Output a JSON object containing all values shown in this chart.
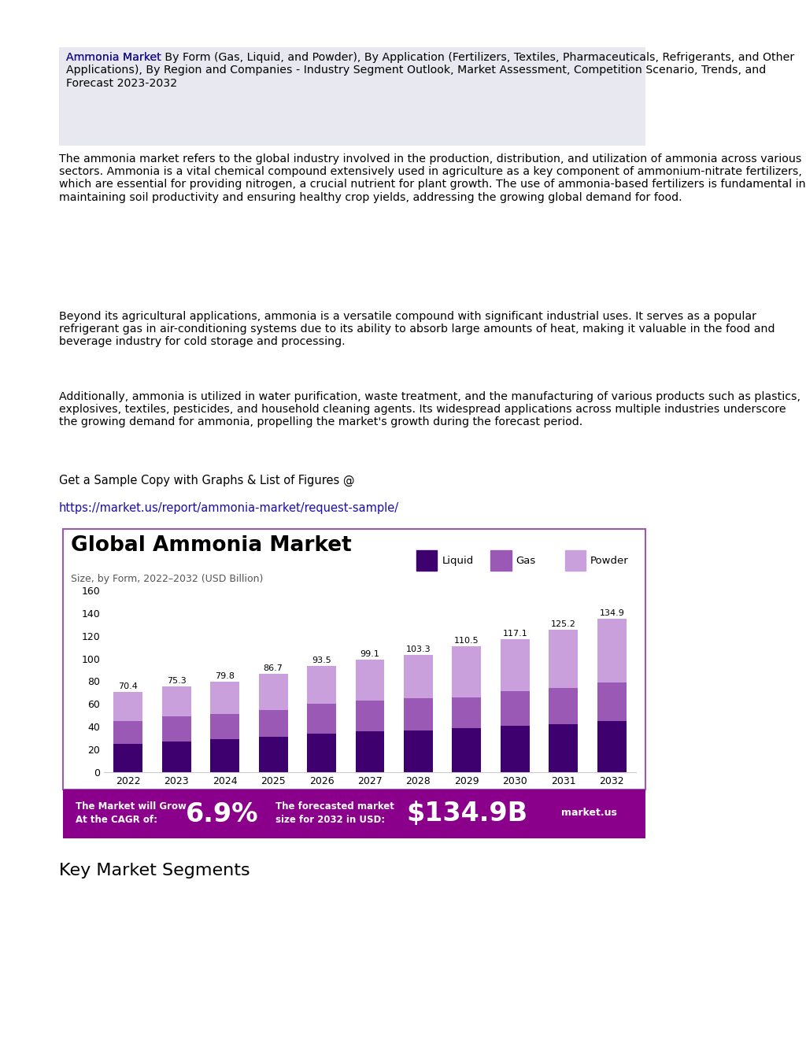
{
  "title": "Global Ammonia Market",
  "subtitle": "Size, by Form, 2022–2032 (USD Billion)",
  "years": [
    2022,
    2023,
    2024,
    2025,
    2026,
    2027,
    2028,
    2029,
    2030,
    2031,
    2032
  ],
  "totals": [
    70.4,
    75.3,
    79.8,
    86.7,
    93.5,
    99.1,
    103.3,
    110.5,
    117.1,
    125.2,
    134.9
  ],
  "liquid": [
    25.0,
    27.0,
    29.0,
    31.0,
    34.0,
    36.0,
    37.0,
    38.5,
    41.0,
    42.0,
    45.0
  ],
  "gas": [
    20.0,
    22.0,
    22.0,
    24.0,
    26.0,
    27.0,
    28.0,
    27.0,
    30.0,
    32.0,
    34.0
  ],
  "powder_color": "#c9a0dc",
  "gas_color": "#9b59b6",
  "liquid_color": "#3d006e",
  "legend_labels": [
    "Liquid",
    "Gas",
    "Powder"
  ],
  "ylim": [
    0,
    160
  ],
  "yticks": [
    0,
    20,
    40,
    60,
    80,
    100,
    120,
    140,
    160
  ],
  "header_text": "Ammonia Market By Form (Gas, Liquid, and Powder), By Application (Fertilizers, Textiles, Pharmaceuticals, Refrigerants, and Other Applications), By Region and Companies - Industry Segment Outlook, Market Assessment, Competition Scenario, Trends, and Forecast 2023-2032",
  "header_link": "Ammonia Market",
  "para1": "The ammonia market refers to the global industry involved in the production, distribution, and utilization of ammonia across various sectors. Ammonia is a vital chemical compound extensively used in agriculture as a key component of ammonium-nitrate fertilizers, which are essential for providing nitrogen, a crucial nutrient for plant growth. The use of ammonia-based fertilizers is fundamental in maintaining soil productivity and ensuring healthy crop yields, addressing the growing global demand for food.",
  "para2": "Beyond its agricultural applications, ammonia is a versatile compound with significant industrial uses. It serves as a popular refrigerant gas in air-conditioning systems due to its ability to absorb large amounts of heat, making it valuable in the food and beverage industry for cold storage and processing.",
  "para3": "Additionally, ammonia is utilized in water purification, waste treatment, and the manufacturing of various products such as plastics, explosives, textiles, pesticides, and household cleaning agents. Its widespread applications across multiple industries underscore the growing demand for ammonia, propelling the market's growth during the forecast period.",
  "sample_text": "Get a Sample Copy with Graphs & List of Figures @",
  "sample_url": "https://market.us/report/ammonia-market/request-sample/",
  "footer_text1": "The Market will Grow\nAt the CAGR of:",
  "footer_cagr": "6.9%",
  "footer_text2": "The forecasted market\nsize for 2032 in USD:",
  "footer_value": "$134.9B",
  "footer_logo": "market.us",
  "footer_bg": "#8B008B",
  "key_segments": "Key Market Segments",
  "chart_border_color": "#9b59b6",
  "header_bg": "#e8e8f0"
}
